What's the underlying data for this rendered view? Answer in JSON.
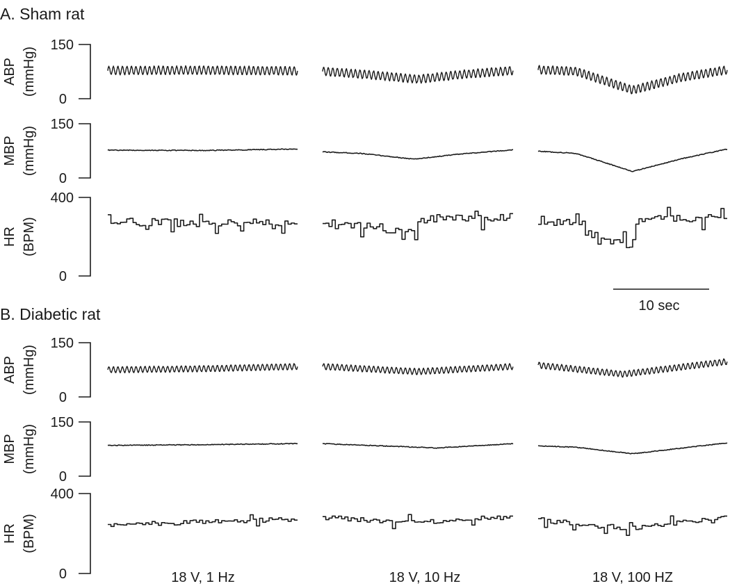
{
  "chart_data": {
    "type": "line",
    "time_scale_bar": "10 sec",
    "conditions": [
      "18 V, 1 Hz",
      "18 V, 10 Hz",
      "18 V, 100 HZ"
    ],
    "panels": [
      {
        "title": "A. Sham rat",
        "rows": [
          {
            "key": "ABP",
            "ylabel": "ABP",
            "unit": "(mmHg)",
            "ylim": [
              0,
              150
            ],
            "yticks": [
              "0",
              "150"
            ],
            "style": "oscillating",
            "oscillation_amplitude": 11,
            "series": [
              {
                "condition": "18 V, 1 Hz",
                "x": [
                  0,
                  0.5,
                  1
                ],
                "y": [
                  78,
                  79,
                  77
                ]
              },
              {
                "condition": "18 V, 10 Hz",
                "x": [
                  0,
                  0.25,
                  0.5,
                  0.75,
                  1
                ],
                "y": [
                  76,
                  66,
                  54,
                  68,
                  78
                ]
              },
              {
                "condition": "18 V, 100 HZ",
                "x": [
                  0,
                  0.2,
                  0.5,
                  0.75,
                  1
                ],
                "y": [
                  80,
                  76,
                  24,
                  58,
                  80
                ]
              }
            ]
          },
          {
            "key": "MBP",
            "ylabel": "MBP",
            "unit": "(mmHg)",
            "ylim": [
              0,
              150
            ],
            "yticks": [
              "0",
              "150"
            ],
            "style": "smooth",
            "series": [
              {
                "condition": "18 V, 1 Hz",
                "x": [
                  0,
                  0.5,
                  1
                ],
                "y": [
                  77,
                  76,
                  80
                ]
              },
              {
                "condition": "18 V, 10 Hz",
                "x": [
                  0,
                  0.2,
                  0.48,
                  0.7,
                  1
                ],
                "y": [
                  72,
                  68,
                  52,
                  65,
                  78
                ]
              },
              {
                "condition": "18 V, 100 HZ",
                "x": [
                  0,
                  0.2,
                  0.5,
                  0.75,
                  1
                ],
                "y": [
                  74,
                  68,
                  18,
                  52,
                  80
                ]
              }
            ]
          },
          {
            "key": "HR",
            "ylabel": "HR",
            "unit": "(BPM)",
            "ylim": [
              0,
              400
            ],
            "yticks": [
              "0",
              "400"
            ],
            "style": "stepped",
            "step_jitter": 20,
            "series": [
              {
                "condition": "18 V, 1 Hz",
                "x": [
                  0,
                  0.5,
                  1
                ],
                "y": [
                  275,
                  270,
                  275
                ]
              },
              {
                "condition": "18 V, 10 Hz",
                "x": [
                  0,
                  0.3,
                  0.45,
                  0.55,
                  1
                ],
                "y": [
                  275,
                  250,
                  210,
                  295,
                  300
                ]
              },
              {
                "condition": "18 V, 100 HZ",
                "x": [
                  0,
                  0.26,
                  0.28,
                  0.5,
                  0.52,
                  0.55,
                  1
                ],
                "y": [
                  270,
                  270,
                  180,
                  160,
                  245,
                  285,
                  300
                ]
              }
            ]
          }
        ]
      },
      {
        "title": "B. Diabetic rat",
        "rows": [
          {
            "key": "ABP",
            "ylabel": "ABP",
            "unit": "(mmHg)",
            "ylim": [
              0,
              150
            ],
            "yticks": [
              "0",
              "150"
            ],
            "style": "oscillating",
            "oscillation_amplitude": 8,
            "series": [
              {
                "condition": "18 V, 1 Hz",
                "x": [
                  0,
                  0.5,
                  1
                ],
                "y": [
                  75,
                  78,
                  84
                ]
              },
              {
                "condition": "18 V, 10 Hz",
                "x": [
                  0,
                  0.5,
                  1
                ],
                "y": [
                  84,
                  70,
                  84
                ]
              },
              {
                "condition": "18 V, 100 HZ",
                "x": [
                  0,
                  0.45,
                  1
                ],
                "y": [
                  88,
                  63,
                  98
                ]
              }
            ]
          },
          {
            "key": "MBP",
            "ylabel": "MBP",
            "unit": "(mmHg)",
            "ylim": [
              0,
              150
            ],
            "yticks": [
              "0",
              "150"
            ],
            "style": "smooth",
            "series": [
              {
                "condition": "18 V, 1 Hz",
                "x": [
                  0,
                  0.5,
                  1
                ],
                "y": [
                  85,
                  87,
                  90
                ]
              },
              {
                "condition": "18 V, 10 Hz",
                "x": [
                  0,
                  0.6,
                  1
                ],
                "y": [
                  90,
                  78,
                  90
                ]
              },
              {
                "condition": "18 V, 100 HZ",
                "x": [
                  0,
                  0.2,
                  0.5,
                  1
                ],
                "y": [
                  84,
                  80,
                  62,
                  92
                ]
              }
            ]
          },
          {
            "key": "HR",
            "ylabel": "HR",
            "unit": "(BPM)",
            "ylim": [
              0,
              400
            ],
            "yticks": [
              "0",
              "400"
            ],
            "style": "stepped",
            "step_jitter": 12,
            "series": [
              {
                "condition": "18 V, 1 Hz",
                "x": [
                  0,
                  0.5,
                  1
                ],
                "y": [
                  240,
                  260,
                  270
                ]
              },
              {
                "condition": "18 V, 10 Hz",
                "x": [
                  0,
                  0.5,
                  1
                ],
                "y": [
                  280,
                  255,
                  285
                ]
              },
              {
                "condition": "18 V, 100 HZ",
                "x": [
                  0,
                  0.25,
                  0.5,
                  1
                ],
                "y": [
                  270,
                  245,
                  225,
                  285
                ]
              }
            ]
          }
        ]
      }
    ]
  }
}
